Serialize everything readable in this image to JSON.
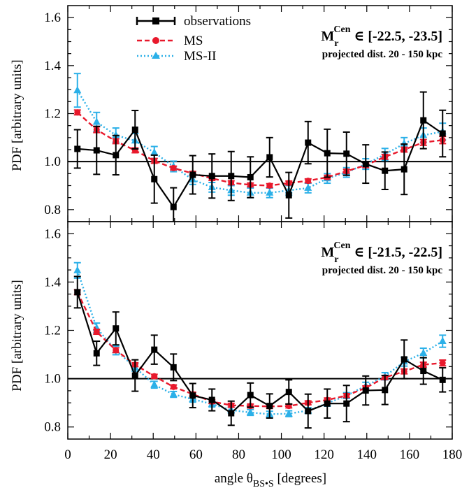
{
  "colors": {
    "observations": "#000000",
    "MS": "#e8192c",
    "MS-II": "#2bb0e8",
    "axis": "#000000"
  },
  "legend": {
    "observations": "observations",
    "ms": "MS",
    "ms2": "MS-II"
  },
  "xlabel": {
    "prefix": "angle θ",
    "subscript": "BS•S",
    "suffix": " [degrees]"
  },
  "ylabel": "PDF  [arbitrary units]",
  "chart_data": [
    {
      "type": "line",
      "panel": "top",
      "annotation": {
        "title_base": "M",
        "title_sub": "r",
        "title_sup": "Cen",
        "title_rest": " ∈ [-22.5, -23.5]",
        "subtitle": "projected dist. 20 - 150 kpc"
      },
      "xlim": [
        0,
        180
      ],
      "ylim": [
        0.75,
        1.65
      ],
      "xticks": [
        "0",
        "20",
        "40",
        "60",
        "80",
        "100",
        "120",
        "140",
        "160",
        "180"
      ],
      "yticks": [
        "0.8",
        "1.0",
        "1.2",
        "1.4",
        "1.6"
      ],
      "reference_line": 1.0,
      "x": [
        4.5,
        13.5,
        22.5,
        31.5,
        40.5,
        49.5,
        58.5,
        67.5,
        76.5,
        85.5,
        94.5,
        103.5,
        112.5,
        121.5,
        130.5,
        139.5,
        148.5,
        157.5,
        166.5,
        175.5
      ],
      "series": [
        {
          "name": "observations",
          "values": [
            1.053,
            1.047,
            1.027,
            1.133,
            0.927,
            0.811,
            0.945,
            0.94,
            0.94,
            0.935,
            1.018,
            0.86,
            1.079,
            1.035,
            1.033,
            0.99,
            0.962,
            0.968,
            1.172,
            1.117
          ],
          "errors": [
            0.08,
            0.1,
            0.082,
            0.08,
            0.1,
            0.08,
            0.08,
            0.092,
            0.102,
            0.085,
            0.082,
            0.095,
            0.088,
            0.1,
            0.09,
            0.08,
            0.078,
            0.105,
            0.118,
            0.097
          ]
        },
        {
          "name": "MS",
          "values": [
            1.205,
            1.133,
            1.085,
            1.047,
            1.003,
            0.973,
            0.951,
            0.93,
            0.912,
            0.903,
            0.9,
            0.911,
            0.92,
            0.935,
            0.96,
            0.985,
            1.02,
            1.05,
            1.08,
            1.09
          ],
          "errors": [
            0.01,
            0.012,
            0.01,
            0.01,
            0.01,
            0.008,
            0.008,
            0.008,
            0.008,
            0.008,
            0.008,
            0.008,
            0.008,
            0.008,
            0.008,
            0.01,
            0.01,
            0.01,
            0.012,
            0.015
          ]
        },
        {
          "name": "MS-II",
          "values": [
            1.297,
            1.165,
            1.11,
            1.087,
            1.038,
            0.98,
            0.925,
            0.893,
            0.88,
            0.87,
            0.87,
            0.88,
            0.89,
            0.93,
            0.955,
            0.99,
            1.03,
            1.075,
            1.11,
            1.125
          ],
          "errors": [
            0.07,
            0.04,
            0.03,
            0.03,
            0.025,
            0.022,
            0.02,
            0.02,
            0.02,
            0.02,
            0.02,
            0.02,
            0.02,
            0.02,
            0.02,
            0.022,
            0.025,
            0.025,
            0.03,
            0.035
          ]
        }
      ]
    },
    {
      "type": "line",
      "panel": "bottom",
      "annotation": {
        "title_base": "M",
        "title_sub": "r",
        "title_sup": "Cen",
        "title_rest": " ∈ [-21.5, -22.5]",
        "subtitle": "projected dist. 20 - 150 kpc"
      },
      "xlim": [
        0,
        180
      ],
      "ylim": [
        0.75,
        1.65
      ],
      "xticks": [
        "0",
        "20",
        "40",
        "60",
        "80",
        "100",
        "120",
        "140",
        "160",
        "180"
      ],
      "yticks": [
        "0.8",
        "1.0",
        "1.2",
        "1.4",
        "1.6"
      ],
      "reference_line": 1.0,
      "x": [
        4.5,
        13.5,
        22.5,
        31.5,
        40.5,
        49.5,
        58.5,
        67.5,
        76.5,
        85.5,
        94.5,
        103.5,
        112.5,
        121.5,
        130.5,
        139.5,
        148.5,
        157.5,
        166.5,
        175.5
      ],
      "series": [
        {
          "name": "observations",
          "values": [
            1.358,
            1.105,
            1.208,
            1.013,
            1.12,
            1.047,
            0.93,
            0.912,
            0.857,
            0.932,
            0.887,
            0.945,
            0.866,
            0.897,
            0.897,
            0.951,
            0.953,
            1.08,
            1.032,
            0.995
          ],
          "errors": [
            0.065,
            0.05,
            0.068,
            0.065,
            0.06,
            0.055,
            0.05,
            0.045,
            0.05,
            0.05,
            0.05,
            0.05,
            0.07,
            0.06,
            0.075,
            0.06,
            0.06,
            0.08,
            0.055,
            0.05
          ]
        },
        {
          "name": "MS",
          "values": [
            1.358,
            1.194,
            1.118,
            1.058,
            1.01,
            0.966,
            0.936,
            0.905,
            0.89,
            0.887,
            0.885,
            0.887,
            0.9,
            0.912,
            0.93,
            0.962,
            1.005,
            1.03,
            1.058,
            1.065
          ],
          "errors": [
            0.01,
            0.01,
            0.01,
            0.008,
            0.008,
            0.008,
            0.008,
            0.008,
            0.008,
            0.008,
            0.008,
            0.008,
            0.008,
            0.008,
            0.008,
            0.008,
            0.008,
            0.01,
            0.01,
            0.012
          ]
        },
        {
          "name": "MS-II",
          "values": [
            1.448,
            1.21,
            1.117,
            1.047,
            0.975,
            0.935,
            0.915,
            0.895,
            0.87,
            0.86,
            0.853,
            0.855,
            0.868,
            0.898,
            0.93,
            0.97,
            1.01,
            1.07,
            1.106,
            1.155
          ],
          "errors": [
            0.032,
            0.02,
            0.018,
            0.016,
            0.014,
            0.012,
            0.012,
            0.012,
            0.012,
            0.012,
            0.012,
            0.012,
            0.012,
            0.012,
            0.012,
            0.015,
            0.015,
            0.018,
            0.02,
            0.025
          ]
        }
      ]
    }
  ]
}
